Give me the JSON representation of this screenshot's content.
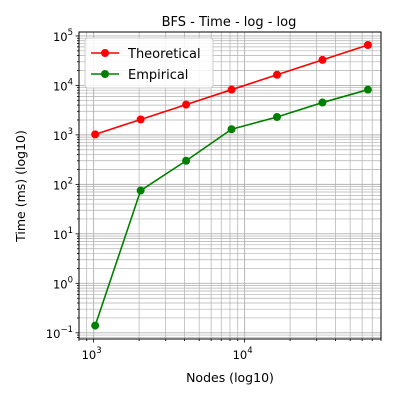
{
  "chart_data": {
    "type": "line",
    "title": "BFS - Time - log - log",
    "xlabel": "Nodes (log10)",
    "ylabel": "Time (ms) (log10)",
    "xscale": "log",
    "yscale": "log",
    "xlim": [
      800,
      80000
    ],
    "ylim": [
      0.075,
      120000
    ],
    "grid": "both (major and minor)",
    "legend_position": "top-left",
    "x": [
      1024,
      2048,
      4096,
      8192,
      16384,
      32768,
      65536
    ],
    "x_ticks": [
      {
        "base": "10",
        "exp": "3",
        "value": 1000
      },
      {
        "base": "10",
        "exp": "4",
        "value": 10000
      }
    ],
    "y_ticks": [
      {
        "base": "10",
        "exp": "−1",
        "value": 0.1
      },
      {
        "base": "10",
        "exp": "0",
        "value": 1
      },
      {
        "base": "10",
        "exp": "1",
        "value": 10
      },
      {
        "base": "10",
        "exp": "2",
        "value": 100
      },
      {
        "base": "10",
        "exp": "3",
        "value": 1000
      },
      {
        "base": "10",
        "exp": "4",
        "value": 10000
      },
      {
        "base": "10",
        "exp": "5",
        "value": 100000
      }
    ],
    "series": [
      {
        "name": "Theoretical",
        "color": "#ff0000",
        "values": [
          1024,
          2048,
          4096,
          8192,
          16384,
          32768,
          65536
        ]
      },
      {
        "name": "Empirical",
        "color": "#008000",
        "values": [
          0.14,
          75,
          300,
          1300,
          2300,
          4500,
          8200
        ]
      }
    ]
  }
}
